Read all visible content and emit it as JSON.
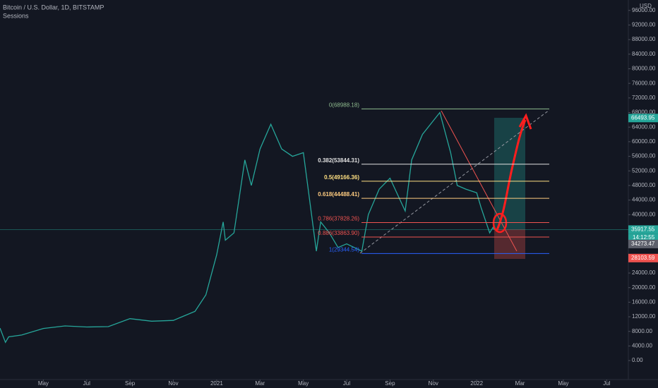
{
  "header": {
    "symbol": "Bitcoin / U.S. Dollar, 1D, BITSTAMP",
    "indicator": "Sessions",
    "currency": "USD"
  },
  "chart_data": {
    "type": "line",
    "color": "#26a69a",
    "x": [
      2.0,
      2.25,
      2.4,
      3,
      4,
      5,
      6,
      7,
      8,
      9,
      10,
      11,
      11.5,
      12,
      12.3,
      12.4,
      12.8,
      13.3,
      13.6,
      14,
      14.5,
      15,
      15.5,
      16,
      16.6,
      16.8,
      17.2,
      17.6,
      18,
      18.7,
      19,
      19.5,
      20,
      20.7,
      21,
      21.5,
      22.3,
      22.8,
      23.1,
      23.5,
      24,
      24.2,
      24.6,
      24.75,
      24.8
    ],
    "values": [
      8900,
      5000,
      6500,
      7000,
      8800,
      9500,
      9200,
      9300,
      11500,
      10800,
      11000,
      13500,
      18000,
      29000,
      38000,
      33000,
      35000,
      55000,
      48000,
      58000,
      64800,
      58000,
      56000,
      57000,
      30000,
      38000,
      35000,
      31000,
      32000,
      30000,
      40000,
      47000,
      50000,
      41000,
      55000,
      62000,
      68000,
      57000,
      48000,
      47000,
      46000,
      42000,
      35000,
      36500,
      35917.55
    ],
    "xlim": [
      2,
      31
    ],
    "ylim": [
      -5200,
      98850
    ],
    "xticks": [
      {
        "value": 4,
        "label": "May"
      },
      {
        "value": 6,
        "label": "Jul"
      },
      {
        "value": 8,
        "label": "Sep"
      },
      {
        "value": 10,
        "label": "Nov"
      },
      {
        "value": 12,
        "label": "2021"
      },
      {
        "value": 14,
        "label": "Mar"
      },
      {
        "value": 16,
        "label": "May"
      },
      {
        "value": 18,
        "label": "Jul"
      },
      {
        "value": 20,
        "label": "Sep"
      },
      {
        "value": 22,
        "label": "Nov"
      },
      {
        "value": 24,
        "label": "2022"
      },
      {
        "value": 26,
        "label": "Mar"
      },
      {
        "value": 28,
        "label": "May"
      },
      {
        "value": 30,
        "label": "Jul"
      }
    ],
    "yticks": [
      {
        "value": 0,
        "label": "0.00"
      },
      {
        "value": 4000,
        "label": "4000.00"
      },
      {
        "value": 8000,
        "label": "8000.00"
      },
      {
        "value": 12000,
        "label": "12000.00"
      },
      {
        "value": 16000,
        "label": "16000.00"
      },
      {
        "value": 20000,
        "label": "20000.00"
      },
      {
        "value": 24000,
        "label": "24000.00"
      },
      {
        "value": 40000,
        "label": "40000.00"
      },
      {
        "value": 44000,
        "label": "44000.00"
      },
      {
        "value": 48000,
        "label": "48000.00"
      },
      {
        "value": 52000,
        "label": "52000.00"
      },
      {
        "value": 56000,
        "label": "56000.00"
      },
      {
        "value": 60000,
        "label": "60000.00"
      },
      {
        "value": 64000,
        "label": "64000.00"
      },
      {
        "value": 68000,
        "label": "68000.00"
      },
      {
        "value": 72000,
        "label": "72000.00"
      },
      {
        "value": 76000,
        "label": "76000.00"
      },
      {
        "value": 80000,
        "label": "80000.00"
      },
      {
        "value": 84000,
        "label": "84000.00"
      },
      {
        "value": 88000,
        "label": "88000.00"
      },
      {
        "value": 92000,
        "label": "92000.00"
      },
      {
        "value": 96000,
        "label": "96000.00"
      }
    ],
    "fib_levels": [
      {
        "value": 68988.18,
        "label": "0(68988.18)",
        "color": "#8fbc8f"
      },
      {
        "value": 53844.31,
        "label": "0.382(53844.31)",
        "color": "#e0e0e0"
      },
      {
        "value": 49166.36,
        "label": "0.5(49166.36)",
        "color": "#ffe082"
      },
      {
        "value": 44488.41,
        "label": "0.618(44488.41)",
        "color": "#ffcc80"
      },
      {
        "value": 37828.26,
        "label": "0.786(37828.26)",
        "color": "#ef5350"
      },
      {
        "value": 33863.9,
        "label": "0.886(33863.90)",
        "color": "#ef5350"
      },
      {
        "value": 29344.54,
        "label": "1(29344.54)",
        "color": "#2962ff"
      }
    ],
    "price_labels": [
      {
        "value": 66493.95,
        "color": "#26a69a"
      },
      {
        "value": 35917.55,
        "color": "#26a69a"
      },
      {
        "value": 34273.47,
        "color": "#5d606b"
      },
      {
        "value": 28103.59,
        "color": "#ef5350"
      }
    ],
    "countdown": "14:12:55"
  }
}
